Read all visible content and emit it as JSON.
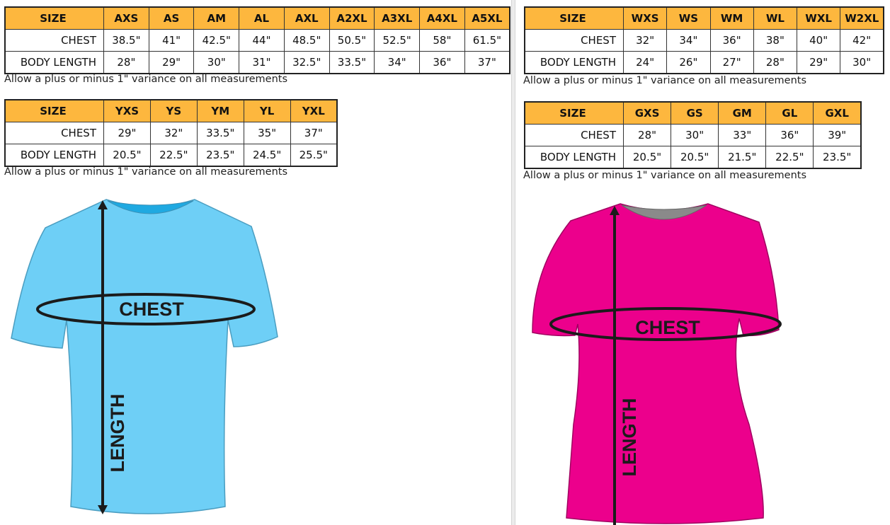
{
  "note": "Allow a plus or minus 1\" variance on all measurements",
  "row_labels": {
    "size": "SIZE",
    "chest": "CHEST",
    "length": "BODY LENGTH"
  },
  "tables": [
    {
      "sizes": [
        "AXS",
        "AS",
        "AM",
        "AL",
        "AXL",
        "A2XL",
        "A3XL",
        "A4XL",
        "A5XL"
      ],
      "chest": [
        "38.5\"",
        "41\"",
        "42.5\"",
        "44\"",
        "48.5\"",
        "50.5\"",
        "52.5\"",
        "58\"",
        "61.5\""
      ],
      "length": [
        "28\"",
        "29\"",
        "30\"",
        "31\"",
        "32.5\"",
        "33.5\"",
        "34\"",
        "36\"",
        "37\""
      ]
    },
    {
      "sizes": [
        "YXS",
        "YS",
        "YM",
        "YL",
        "YXL"
      ],
      "chest": [
        "29\"",
        "32\"",
        "33.5\"",
        "35\"",
        "37\""
      ],
      "length": [
        "20.5\"",
        "22.5\"",
        "23.5\"",
        "24.5\"",
        "25.5\""
      ]
    },
    {
      "sizes": [
        "WXS",
        "WS",
        "WM",
        "WL",
        "WXL",
        "W2XL"
      ],
      "chest": [
        "32\"",
        "34\"",
        "36\"",
        "38\"",
        "40\"",
        "42\""
      ],
      "length": [
        "24\"",
        "26\"",
        "27\"",
        "28\"",
        "29\"",
        "30\""
      ]
    },
    {
      "sizes": [
        "GXS",
        "GS",
        "GM",
        "GL",
        "GXL"
      ],
      "chest": [
        "28\"",
        "30\"",
        "33\"",
        "36\"",
        "39\""
      ],
      "length": [
        "20.5\"",
        "20.5\"",
        "21.5\"",
        "22.5\"",
        "23.5\""
      ]
    }
  ],
  "diagram": {
    "chest_label": "CHEST",
    "length_label": "LENGTH"
  },
  "colors": {
    "header": "#fdb73e",
    "unisex_shirt": "#6ecff6",
    "womens_shirt": "#ec008c"
  }
}
